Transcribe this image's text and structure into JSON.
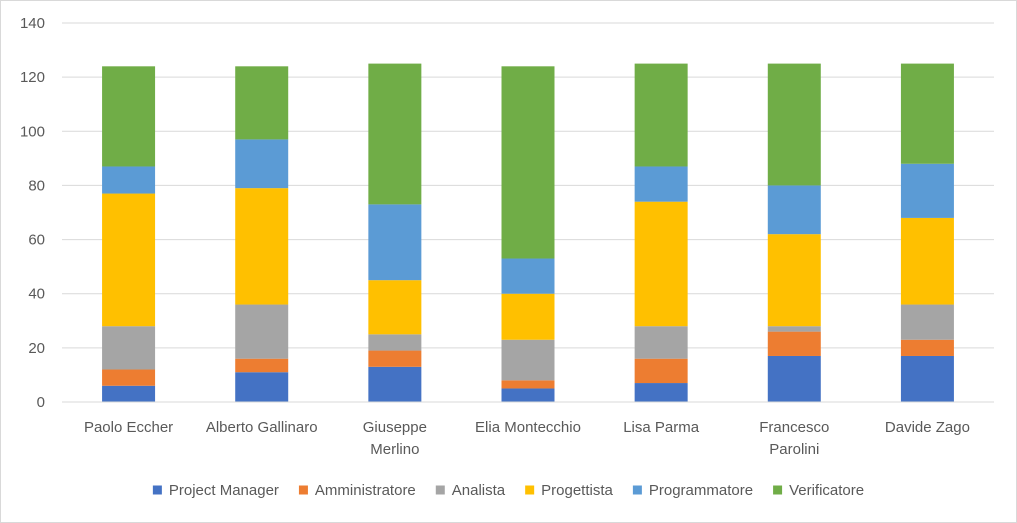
{
  "chart_data": {
    "type": "bar",
    "stacked": true,
    "categories": [
      "Paolo Eccher",
      "Alberto Gallinaro",
      "Giuseppe Merlino",
      "Elia Montecchio",
      "Lisa Parma",
      "Francesco Parolini",
      "Davide Zago"
    ],
    "category_lines": [
      [
        "Paolo Eccher"
      ],
      [
        "Alberto Gallinaro"
      ],
      [
        "Giuseppe",
        "Merlino"
      ],
      [
        "Elia Montecchio"
      ],
      [
        "Lisa Parma"
      ],
      [
        "Francesco",
        "Parolini"
      ],
      [
        "Davide Zago"
      ]
    ],
    "series": [
      {
        "name": "Project Manager",
        "color": "#4472c4",
        "values": [
          6,
          11,
          13,
          5,
          7,
          17,
          17
        ]
      },
      {
        "name": "Amministratore",
        "color": "#ed7d31",
        "values": [
          6,
          5,
          6,
          3,
          9,
          9,
          6
        ]
      },
      {
        "name": "Analista",
        "color": "#a5a5a5",
        "values": [
          16,
          20,
          6,
          15,
          12,
          2,
          13
        ]
      },
      {
        "name": "Progettista",
        "color": "#ffc000",
        "values": [
          49,
          43,
          20,
          17,
          46,
          34,
          32
        ]
      },
      {
        "name": "Programmatore",
        "color": "#5b9bd5",
        "values": [
          10,
          18,
          28,
          13,
          13,
          18,
          20
        ]
      },
      {
        "name": "Verificatore",
        "color": "#70ad47",
        "values": [
          37,
          27,
          52,
          71,
          38,
          45,
          37
        ]
      }
    ],
    "ylim": [
      0,
      140
    ],
    "yticks": [
      0,
      20,
      40,
      60,
      80,
      100,
      120,
      140
    ],
    "grid": true,
    "legend_position": "bottom",
    "title": "",
    "xlabel": "",
    "ylabel": ""
  }
}
